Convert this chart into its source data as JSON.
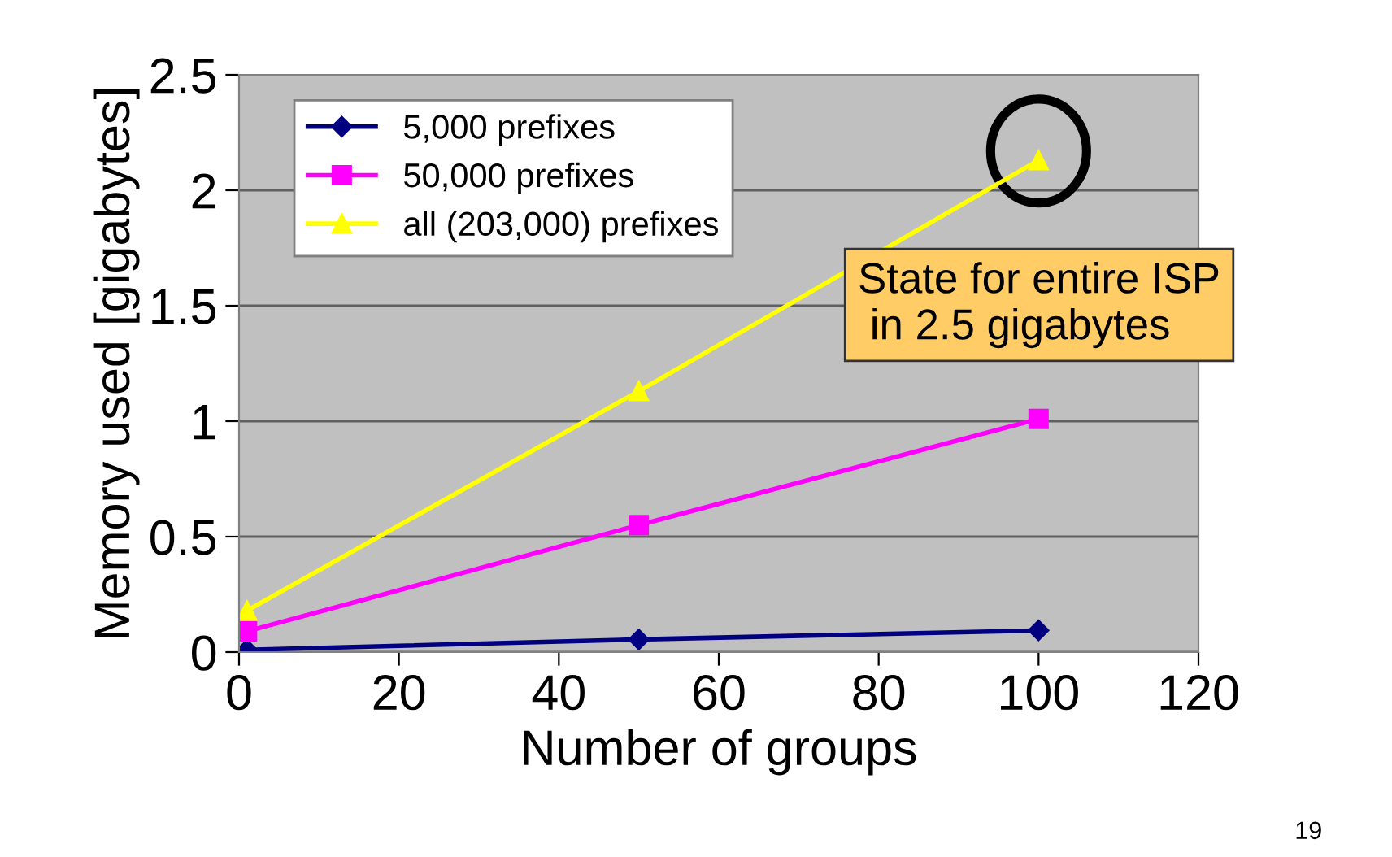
{
  "chart_data": {
    "type": "line",
    "xlabel": "Number of groups",
    "ylabel": "Memory used [gigabytes]",
    "x": [
      1,
      50,
      100
    ],
    "series": [
      {
        "name": "5,000 prefixes",
        "color": "#000080",
        "marker": "diamond",
        "values": [
          0.01,
          0.055,
          0.094
        ]
      },
      {
        "name": "50,000 prefixes",
        "color": "#ff00ff",
        "marker": "square",
        "values": [
          0.09,
          0.55,
          1.01
        ]
      },
      {
        "name": "all (203,000) prefixes",
        "color": "#ffff00",
        "marker": "triangle",
        "values": [
          0.18,
          1.13,
          2.13
        ]
      }
    ],
    "xlim": [
      0,
      120
    ],
    "xticks": [
      0,
      20,
      40,
      60,
      80,
      100,
      120
    ],
    "ylim": [
      0,
      2.5
    ],
    "yticks": [
      0,
      0.5,
      1,
      1.5,
      2,
      2.5
    ],
    "grid": "y",
    "legend": "top left",
    "annotations": [
      {
        "text": "State for entire ISP\n in 2.5 gigabytes",
        "x": 100,
        "y": 2.13
      },
      "19"
    ]
  }
}
